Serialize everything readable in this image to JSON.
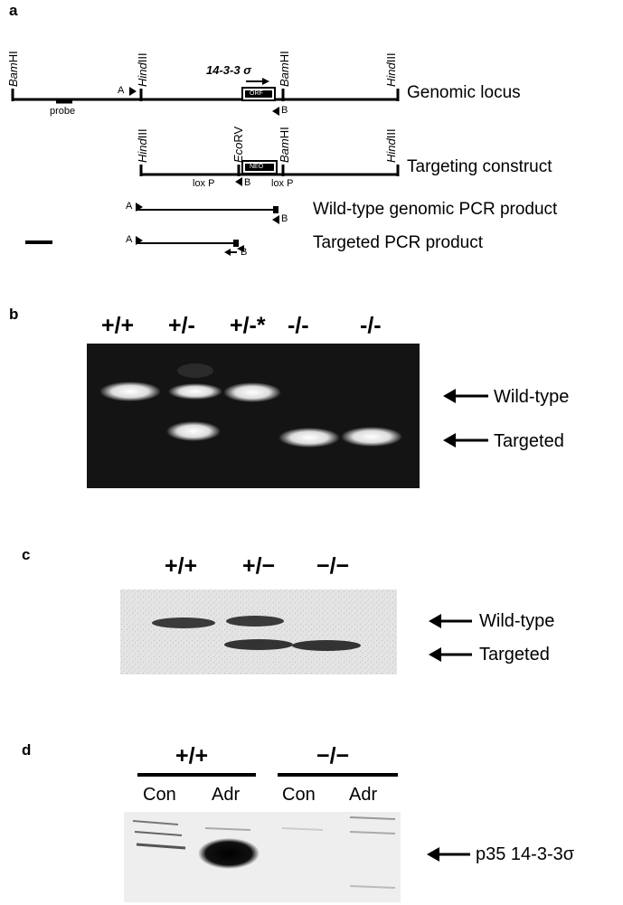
{
  "panel_a": {
    "letter": "a",
    "sites": {
      "bamhi_italic": "Bam",
      "bamhi_rest": "HI",
      "hindiii_italic": "Hind",
      "hindiii_rest": "III",
      "ecorv_italic": "Eco",
      "ecorv_rest": "RV"
    },
    "gene_label": "14-3-3 σ",
    "orf_label": "ORF",
    "neo_label": "NEO",
    "probe_label": "probe",
    "primer_a": "A",
    "primer_b": "B",
    "loxp_label": "lox P",
    "rows": {
      "genomic_locus": "Genomic locus",
      "targeting_construct": "Targeting construct",
      "wt_pcr": "Wild-type genomic PCR product",
      "targeted_pcr": "Targeted PCR product"
    }
  },
  "panel_b": {
    "letter": "b",
    "lanes": [
      "+/+",
      "+/-",
      "+/-*",
      "-/-",
      "-/-"
    ],
    "arrows": [
      "Wild-type",
      "Targeted"
    ]
  },
  "panel_c": {
    "letter": "c",
    "lanes": [
      "+/+",
      "+/−",
      "−/−"
    ],
    "arrows": [
      "Wild-type",
      "Targeted"
    ]
  },
  "panel_d": {
    "letter": "d",
    "groups": [
      "+/+",
      "−/−"
    ],
    "lanes": [
      "Con",
      "Adr",
      "Con",
      "Adr"
    ],
    "arrow": "p35  14-3-3σ"
  },
  "colors": {
    "gel_dark": "#151515",
    "band_light": "#e8e8e8",
    "blot_bg": "#eeeeee",
    "band_dark": "#1a1a1a"
  }
}
